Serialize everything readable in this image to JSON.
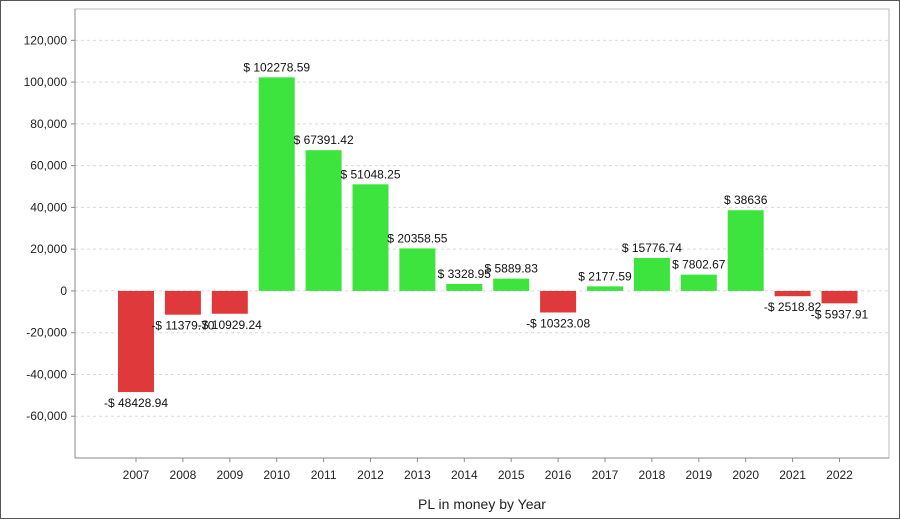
{
  "chart_data": {
    "type": "bar",
    "title": "",
    "xlabel": "PL in money by Year",
    "ylabel": "",
    "categories": [
      "2007",
      "2008",
      "2009",
      "2010",
      "2011",
      "2012",
      "2013",
      "2014",
      "2015",
      "2016",
      "2017",
      "2018",
      "2019",
      "2020",
      "2021",
      "2022"
    ],
    "values": [
      -48428.94,
      -11379.7,
      -10929.24,
      102278.59,
      67391.42,
      51048.25,
      20358.55,
      3328.95,
      5889.83,
      -10323.08,
      2177.59,
      15776.74,
      7802.67,
      38636,
      -2518.82,
      -5937.91
    ],
    "data_labels": [
      "-$ 48428.94",
      "-$ 11379.70",
      "-$ 10929.24",
      "$ 102278.59",
      "$ 67391.42",
      "$ 51048.25",
      "$ 20358.55",
      "$ 3328.95",
      "$ 5889.83",
      "-$ 10323.08",
      "$ 2177.59",
      "$ 15776.74",
      "$ 7802.67",
      "$ 38636",
      "-$ 2518.82",
      "-$ 5937.91"
    ],
    "y_ticks": [
      120000,
      100000,
      80000,
      60000,
      40000,
      20000,
      0,
      -20000,
      -40000,
      -60000
    ],
    "y_tick_labels": [
      "120,000",
      "100,000",
      "80,000",
      "60,000",
      "40,000",
      "20,000",
      "0",
      "-20,000",
      "-40,000",
      "-60,000"
    ],
    "ylim": [
      -80000,
      135000
    ],
    "grid": true,
    "legend": "none",
    "colors": {
      "positive": "#3de43d",
      "negative": "#e0393c",
      "grid": "#d9d9d9",
      "axis": "#888888"
    }
  }
}
